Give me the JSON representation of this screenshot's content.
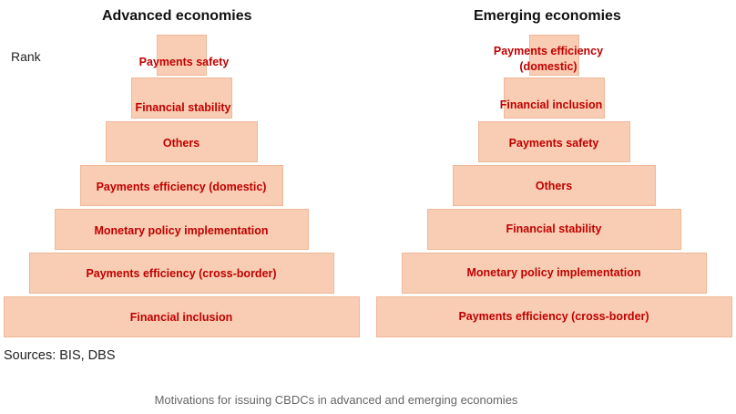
{
  "figure": {
    "rank_label": "Rank",
    "sources": "Sources: BIS, DBS",
    "caption": "Motivations for issuing CBDCs in advanced and emerging economies"
  },
  "advanced": {
    "title": "Advanced economies",
    "tiers": [
      "Payments safety",
      "Financial stability",
      "Others",
      "Payments efficiency (domestic)",
      "Monetary policy implementation",
      "Payments efficiency (cross-border)",
      "Financial inclusion"
    ]
  },
  "emerging": {
    "title": "Emerging economies",
    "tiers": [
      "Payments efficiency (domestic)",
      "Financial inclusion",
      "Payments safety",
      "Others",
      "Financial stability",
      "Monetary policy implementation",
      "Payments efficiency (cross-border)"
    ]
  },
  "colors": {
    "tier_fill": "#f8cdb3",
    "tier_text": "#c00000"
  }
}
